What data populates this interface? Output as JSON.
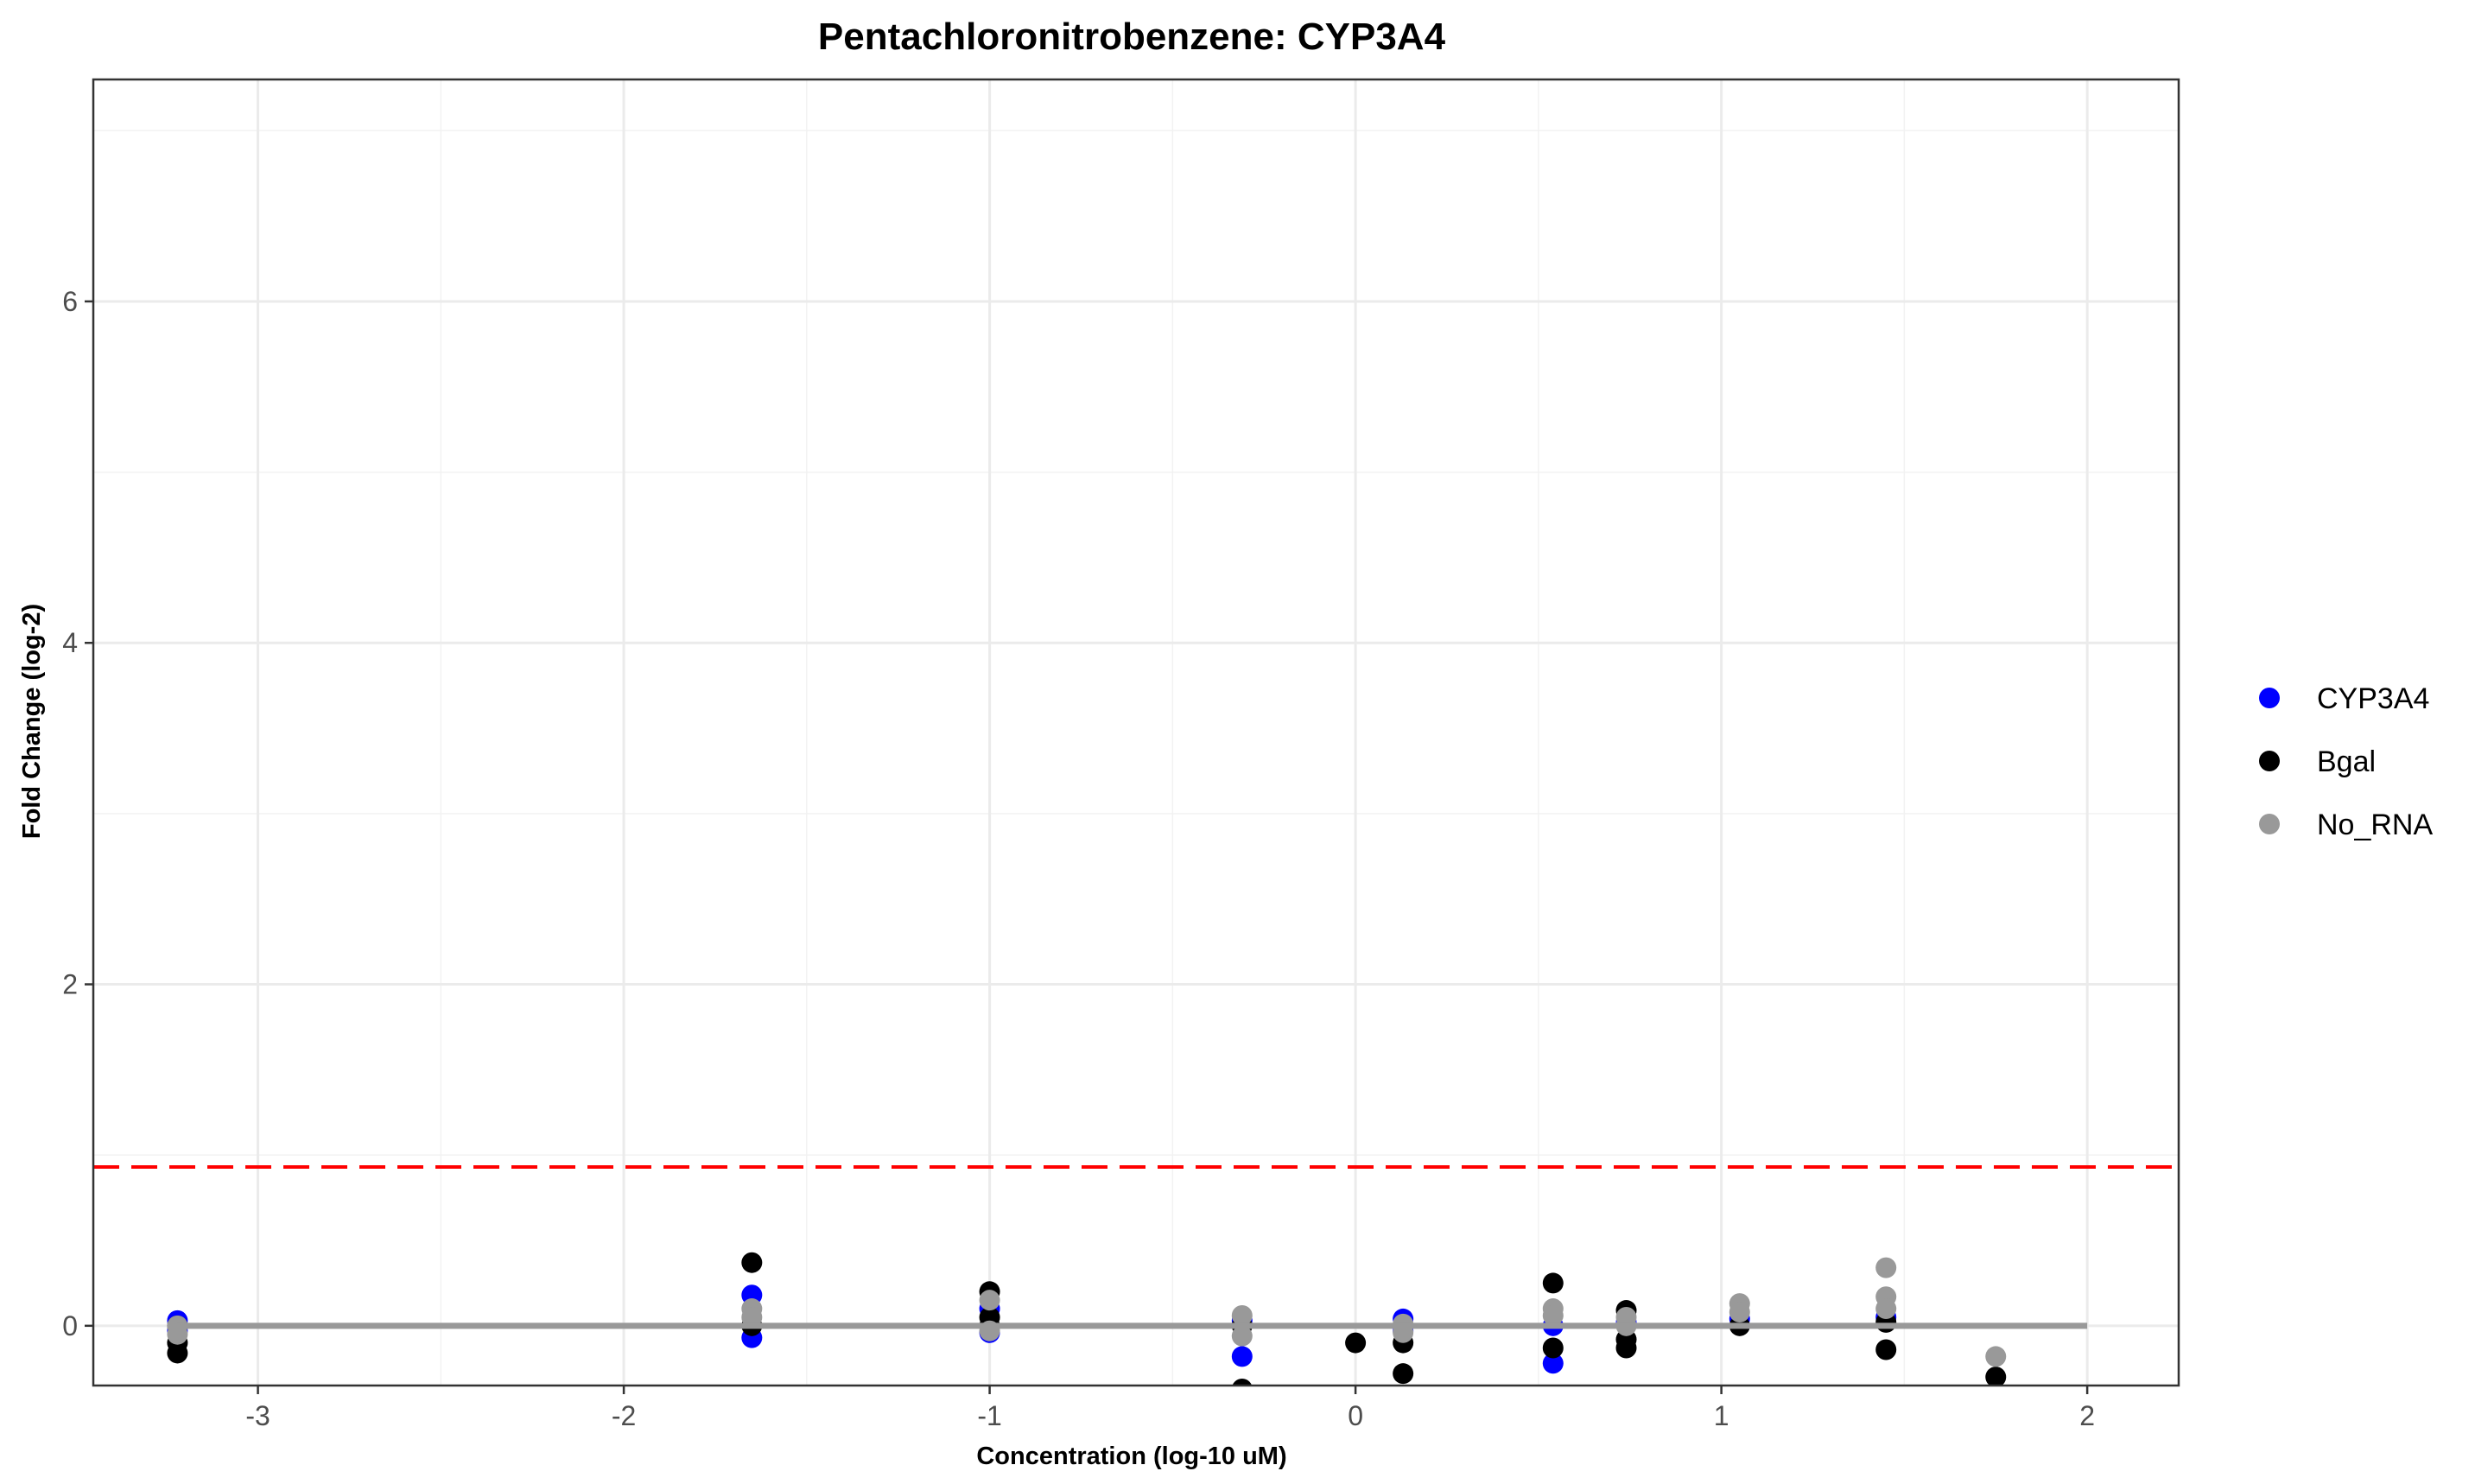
{
  "chart_data": {
    "type": "scatter",
    "title": "Pentachloronitrobenzene: CYP3A4",
    "xlabel": "Concentration (log-10 uM)",
    "ylabel": "Fold Change (log-2)",
    "xlim": [
      -3.45,
      2.25
    ],
    "ylim": [
      -0.35,
      7.3
    ],
    "x_ticks": [
      -3,
      -2,
      -1,
      0,
      1,
      2
    ],
    "y_ticks": [
      0,
      2,
      4,
      6
    ],
    "grid": true,
    "legend_position": "right",
    "threshold": {
      "y": 0.93,
      "color": "#ff0000",
      "style": "dashed"
    },
    "fit_line": {
      "x": [
        -3.22,
        2.0
      ],
      "y": [
        0.0,
        0.0
      ],
      "color": "#999999"
    },
    "series": [
      {
        "name": "CYP3A4",
        "color": "#0000ff",
        "points": [
          [
            -3.22,
            0.03
          ],
          [
            -3.22,
            -0.03
          ],
          [
            -1.65,
            0.18
          ],
          [
            -1.65,
            -0.07
          ],
          [
            -1.0,
            -0.04
          ],
          [
            -1.0,
            0.1
          ],
          [
            -0.31,
            -0.18
          ],
          [
            -0.31,
            0.03
          ],
          [
            0.13,
            0.04
          ],
          [
            0.13,
            -0.03
          ],
          [
            0.54,
            -0.22
          ],
          [
            0.54,
            0.0
          ],
          [
            0.74,
            0.02
          ],
          [
            1.05,
            0.04
          ],
          [
            1.45,
            0.05
          ]
        ]
      },
      {
        "name": "Bgal",
        "color": "#000000",
        "points": [
          [
            -3.22,
            -0.16
          ],
          [
            -3.22,
            -0.1
          ],
          [
            -3.22,
            0.0
          ],
          [
            -1.65,
            0.37
          ],
          [
            -1.65,
            0.0
          ],
          [
            -1.0,
            0.2
          ],
          [
            -1.0,
            0.05
          ],
          [
            -1.0,
            0.0
          ],
          [
            -0.31,
            -0.37
          ],
          [
            -0.31,
            0.0
          ],
          [
            0.13,
            -0.28
          ],
          [
            -0.0,
            -0.1
          ],
          [
            0.13,
            -0.1
          ],
          [
            0.54,
            0.25
          ],
          [
            0.54,
            -0.13
          ],
          [
            0.74,
            0.09
          ],
          [
            0.74,
            -0.08
          ],
          [
            0.74,
            -0.13
          ],
          [
            1.05,
            0.0
          ],
          [
            1.45,
            0.02
          ],
          [
            1.45,
            -0.14
          ],
          [
            1.75,
            -0.3
          ]
        ]
      },
      {
        "name": "No_RNA",
        "color": "#999999",
        "points": [
          [
            -3.22,
            0.0
          ],
          [
            -3.22,
            -0.05
          ],
          [
            -1.65,
            0.1
          ],
          [
            -1.65,
            0.05
          ],
          [
            -1.0,
            0.15
          ],
          [
            -1.0,
            -0.03
          ],
          [
            -0.31,
            0.06
          ],
          [
            -0.31,
            -0.06
          ],
          [
            0.13,
            0.01
          ],
          [
            0.13,
            -0.04
          ],
          [
            0.54,
            0.1
          ],
          [
            0.54,
            0.06
          ],
          [
            0.74,
            0.05
          ],
          [
            0.74,
            0.0
          ],
          [
            1.05,
            0.13
          ],
          [
            1.05,
            0.08
          ],
          [
            1.45,
            0.34
          ],
          [
            1.45,
            0.17
          ],
          [
            1.45,
            0.1
          ],
          [
            1.75,
            -0.18
          ]
        ]
      }
    ]
  }
}
